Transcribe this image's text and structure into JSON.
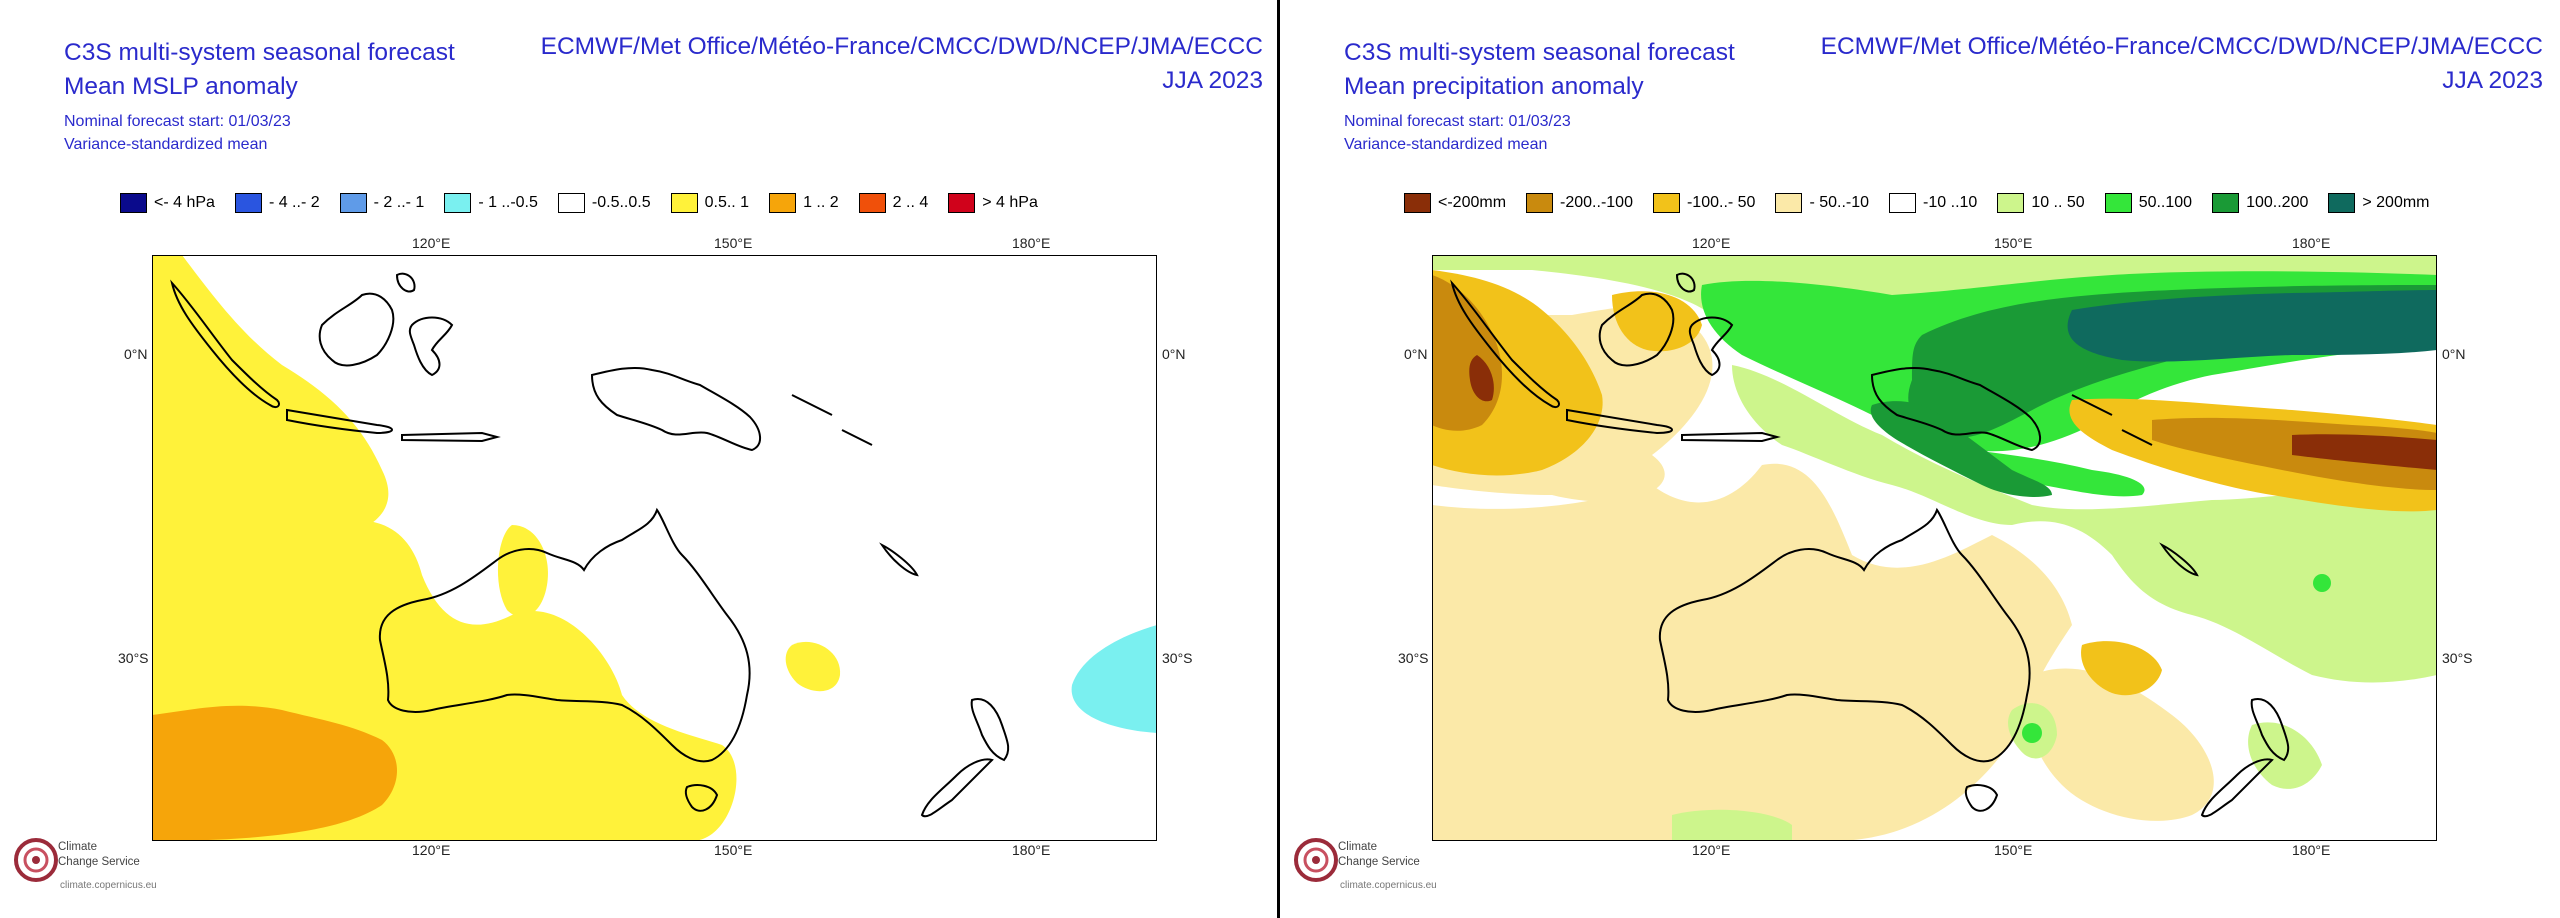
{
  "left": {
    "title_line1": "C3S multi-system seasonal forecast",
    "title_line2": "Mean MSLP anomaly",
    "models": "ECMWF/Met Office/Météo-France/CMCC/DWD/NCEP/JMA/ECCC",
    "season": "JJA 2023",
    "start": "Nominal forecast start: 01/03/23",
    "method": "Variance-standardized mean",
    "legend": [
      {
        "label": "<- 4 hPa",
        "color": "#0a0a8c"
      },
      {
        "label": "- 4 ..- 2",
        "color": "#2a55e0"
      },
      {
        "label": "- 2 ..- 1",
        "color": "#5f9be8"
      },
      {
        "label": "- 1 ..-0.5",
        "color": "#7af0f0"
      },
      {
        "label": "-0.5..0.5",
        "color": "#ffffff"
      },
      {
        "label": "0.5.. 1",
        "color": "#fff23a"
      },
      {
        "label": "1 .. 2",
        "color": "#f6a50a"
      },
      {
        "label": "2 .. 4",
        "color": "#f0500a"
      },
      {
        "label": "> 4 hPa",
        "color": "#d0021b"
      }
    ]
  },
  "right": {
    "title_line1": "C3S multi-system seasonal forecast",
    "title_line2": "Mean precipitation anomaly",
    "models": "ECMWF/Met Office/Météo-France/CMCC/DWD/NCEP/JMA/ECCC",
    "season": "JJA 2023",
    "start": "Nominal forecast start: 01/03/23",
    "method": "Variance-standardized mean",
    "legend": [
      {
        "label": "<-200mm",
        "color": "#8a2e08"
      },
      {
        "label": "-200..-100",
        "color": "#c98a0e"
      },
      {
        "label": "-100..- 50",
        "color": "#f2c21a"
      },
      {
        "label": "- 50..-10",
        "color": "#fbe9a8"
      },
      {
        "label": "-10 ..10",
        "color": "#ffffff"
      },
      {
        "label": "10 .. 50",
        "color": "#cdf58c"
      },
      {
        "label": "50..100",
        "color": "#34e63a"
      },
      {
        "label": "100..200",
        "color": "#1a9a36"
      },
      {
        "label": "> 200mm",
        "color": "#0f6a5e"
      }
    ]
  },
  "map_ticks": {
    "lon": [
      "120°E",
      "150°E",
      "180°E"
    ],
    "lat": [
      "0°N",
      "30°S"
    ]
  },
  "logo": {
    "line1": "Climate",
    "line2": "Change Service",
    "url": "climate.copernicus.eu"
  }
}
